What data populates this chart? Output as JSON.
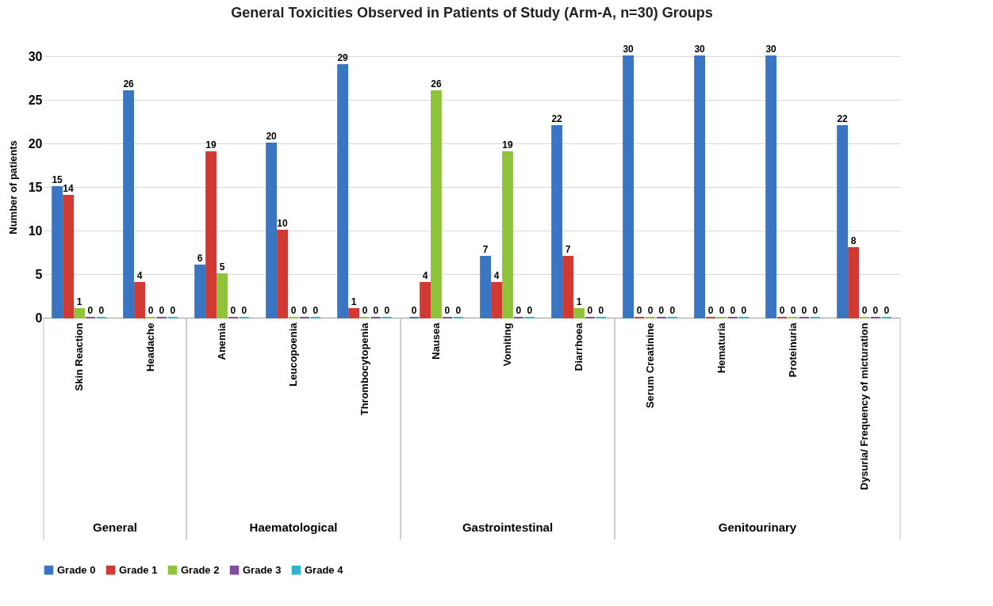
{
  "chart_data": {
    "type": "bar",
    "title": "General Toxicities Observed in Patients of Study (Arm-A, n=30) Groups",
    "ylabel": "Number of patients",
    "categories": [
      "Skin Reaction",
      "Headache",
      "Anemia",
      "Leucopoenia",
      "Thrombocytopenia",
      "Nausea",
      "Vomiting",
      "Diarrhoea",
      "Serum Creatinine",
      "Hematuria",
      "Proteinuria",
      "Dysuria/ Frequency of micturation"
    ],
    "series": [
      {
        "name": "Grade 0",
        "color": "#3a75c4",
        "values": [
          15,
          26,
          6,
          20,
          29,
          0,
          7,
          22,
          30,
          30,
          30,
          22
        ]
      },
      {
        "name": "Grade 1",
        "color": "#d03a32",
        "values": [
          14,
          4,
          19,
          10,
          1,
          4,
          4,
          7,
          0,
          0,
          0,
          8
        ]
      },
      {
        "name": "Grade 2",
        "color": "#8fc43a",
        "values": [
          1,
          0,
          5,
          0,
          0,
          26,
          19,
          1,
          0,
          0,
          0,
          0
        ]
      },
      {
        "name": "Grade 3",
        "color": "#7e4f9e",
        "values": [
          0,
          0,
          0,
          0,
          0,
          0,
          0,
          0,
          0,
          0,
          0,
          0
        ]
      },
      {
        "name": "Grade 4",
        "color": "#2fb5c8",
        "values": [
          0,
          0,
          0,
          0,
          0,
          0,
          0,
          0,
          0,
          0,
          0,
          0
        ]
      }
    ],
    "annotations": [
      "General",
      "Haematological",
      "Gastrointestinal",
      "Genitourinary"
    ],
    "ylim": [
      0,
      30
    ],
    "yticks": [
      0,
      5,
      10,
      15,
      20,
      25,
      30
    ],
    "grid": "y",
    "legend": "bottom",
    "data_labels": true
  }
}
